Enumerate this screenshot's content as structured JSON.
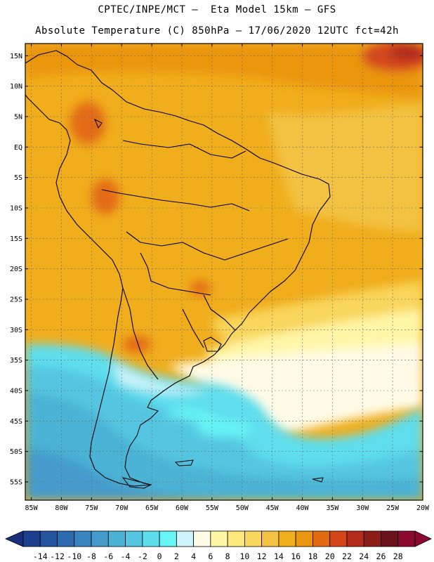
{
  "header": {
    "line1": "CPTEC/INPE/MCT –  Eta Model 15km – GFS",
    "line2": "Absolute Temperature (C) 850hPa – 17/06/2020 12UTC fct=42h"
  },
  "axes": {
    "lat_labels": [
      "15N",
      "10N",
      "5N",
      "EQ",
      "5S",
      "10S",
      "15S",
      "20S",
      "25S",
      "30S",
      "35S",
      "40S",
      "45S",
      "50S",
      "55S"
    ],
    "lat_values": [
      15,
      10,
      5,
      0,
      -5,
      -10,
      -15,
      -20,
      -25,
      -30,
      -35,
      -40,
      -45,
      -50,
      -55
    ],
    "lon_labels": [
      "85W",
      "80W",
      "75W",
      "70W",
      "65W",
      "60W",
      "55W",
      "50W",
      "45W",
      "40W",
      "35W",
      "30W",
      "25W",
      "20W"
    ],
    "lon_values": [
      -85,
      -80,
      -75,
      -70,
      -65,
      -60,
      -55,
      -50,
      -45,
      -40,
      -35,
      -30,
      -25,
      -20
    ],
    "lat_range": [
      -58,
      17
    ],
    "lon_range": [
      -86,
      -20
    ]
  },
  "colorbar": {
    "labels": [
      "-14",
      "-12",
      "-10",
      "-8",
      "-6",
      "-4",
      "-2",
      "0",
      "2",
      "4",
      "6",
      "8",
      "10",
      "12",
      "14",
      "16",
      "18",
      "20",
      "22",
      "24",
      "26",
      "28"
    ],
    "colors": [
      "#1c3f8f",
      "#24559e",
      "#2d6bb0",
      "#3a84c0",
      "#449bcb",
      "#4bb3d6",
      "#55c6e1",
      "#5edeed",
      "#66f4f5",
      "#cdf4fb",
      "#fffbe6",
      "#fff7a8",
      "#ffe97a",
      "#f9d65c",
      "#f3c243",
      "#f0ad1c",
      "#eb9610",
      "#e36a12",
      "#d4461a",
      "#b42a1b",
      "#8e1d1a",
      "#6a121a",
      "#8c0a30"
    ],
    "under_color": "#1a2f7a",
    "over_color": "#8c0a30"
  }
}
